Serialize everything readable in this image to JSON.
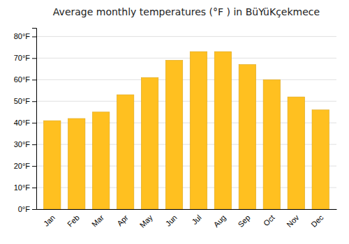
{
  "chart_data": {
    "type": "bar",
    "title": "Average monthly temperatures (°F ) in BüYüKçekmece",
    "categories": [
      "Jan",
      "Feb",
      "Mar",
      "Apr",
      "May",
      "Jun",
      "Jul",
      "Aug",
      "Sep",
      "Oct",
      "Nov",
      "Dec"
    ],
    "values": [
      41,
      42,
      45,
      53,
      61,
      69,
      73,
      73,
      67,
      60,
      52,
      46
    ],
    "color": "#FFC020",
    "ylim": [
      0,
      84
    ],
    "yticks": [
      {
        "value": 0,
        "label": "0°F"
      },
      {
        "value": 10,
        "label": "10°F"
      },
      {
        "value": 20,
        "label": "20°F"
      },
      {
        "value": 30,
        "label": "30°F"
      },
      {
        "value": 40,
        "label": "40°F"
      },
      {
        "value": 50,
        "label": "50°F"
      },
      {
        "value": 60,
        "label": "60°F"
      },
      {
        "value": 70,
        "label": "70°F"
      },
      {
        "value": 80,
        "label": "80°F"
      }
    ],
    "grid": true
  }
}
